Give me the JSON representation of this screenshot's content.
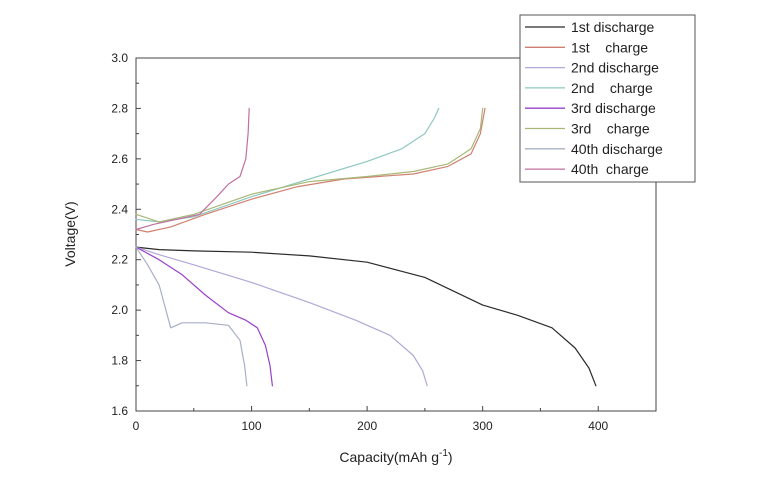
{
  "chart_data": {
    "type": "line",
    "xlabel": "Capacity(mAh g",
    "xlabel_sup": "-1",
    "xlabel_close": ")",
    "ylabel": "Voltage(V)",
    "xlim": [
      0,
      450
    ],
    "ylim": [
      1.6,
      3.0
    ],
    "x_ticks": [
      0,
      100,
      200,
      300,
      400
    ],
    "y_ticks": [
      1.6,
      1.8,
      2.0,
      2.2,
      2.4,
      2.6,
      2.8,
      3.0
    ],
    "x_tick_labels": [
      "0",
      "100",
      "200",
      "300",
      "400"
    ],
    "y_tick_labels": [
      "1.6",
      "1.8",
      "2.0",
      "2.2",
      "2.4",
      "2.6",
      "2.8",
      "3.0"
    ],
    "grid": false,
    "legend": {
      "placement": "top-right",
      "entries": [
        {
          "label": "1st discharge",
          "color": "#2b2b2b"
        },
        {
          "label": "1st    charge",
          "color": "#d08070"
        },
        {
          "label": "2nd discharge",
          "color": "#b0a8d8"
        },
        {
          "label": "2nd    charge",
          "color": "#8fc8c0"
        },
        {
          "label": "3rd discharge",
          "color": "#9a40c8"
        },
        {
          "label": "3rd    charge",
          "color": "#a8b878"
        },
        {
          "label": "40th discharge",
          "color": "#a8b0c8"
        },
        {
          "label": "40th  charge",
          "color": "#c070a0"
        }
      ]
    },
    "series": [
      {
        "name": "1st discharge",
        "color": "#2b2b2b",
        "points": [
          [
            0,
            2.25
          ],
          [
            20,
            2.24
          ],
          [
            50,
            2.235
          ],
          [
            100,
            2.23
          ],
          [
            150,
            2.215
          ],
          [
            200,
            2.19
          ],
          [
            250,
            2.13
          ],
          [
            300,
            2.02
          ],
          [
            330,
            1.98
          ],
          [
            360,
            1.93
          ],
          [
            380,
            1.85
          ],
          [
            392,
            1.77
          ],
          [
            398,
            1.7
          ]
        ]
      },
      {
        "name": "1st    charge",
        "color": "#d08070",
        "points": [
          [
            0,
            2.32
          ],
          [
            10,
            2.31
          ],
          [
            30,
            2.33
          ],
          [
            60,
            2.38
          ],
          [
            100,
            2.44
          ],
          [
            140,
            2.49
          ],
          [
            180,
            2.52
          ],
          [
            210,
            2.53
          ],
          [
            240,
            2.54
          ],
          [
            270,
            2.57
          ],
          [
            290,
            2.62
          ],
          [
            298,
            2.7
          ],
          [
            302,
            2.8
          ]
        ]
      },
      {
        "name": "2nd discharge",
        "color": "#b0a8d8",
        "points": [
          [
            0,
            2.25
          ],
          [
            20,
            2.22
          ],
          [
            50,
            2.18
          ],
          [
            100,
            2.11
          ],
          [
            150,
            2.03
          ],
          [
            190,
            1.96
          ],
          [
            220,
            1.9
          ],
          [
            240,
            1.82
          ],
          [
            248,
            1.76
          ],
          [
            252,
            1.7
          ]
        ]
      },
      {
        "name": "2nd    charge",
        "color": "#8fc8c0",
        "points": [
          [
            0,
            2.36
          ],
          [
            20,
            2.35
          ],
          [
            50,
            2.37
          ],
          [
            100,
            2.45
          ],
          [
            150,
            2.52
          ],
          [
            200,
            2.59
          ],
          [
            230,
            2.64
          ],
          [
            250,
            2.7
          ],
          [
            258,
            2.76
          ],
          [
            262,
            2.8
          ]
        ]
      },
      {
        "name": "3rd discharge",
        "color": "#9a40c8",
        "points": [
          [
            0,
            2.25
          ],
          [
            20,
            2.2
          ],
          [
            40,
            2.14
          ],
          [
            60,
            2.06
          ],
          [
            80,
            1.99
          ],
          [
            95,
            1.96
          ],
          [
            105,
            1.93
          ],
          [
            112,
            1.86
          ],
          [
            116,
            1.78
          ],
          [
            118,
            1.7
          ]
        ]
      },
      {
        "name": "3rd    charge",
        "color": "#a8b878",
        "points": [
          [
            0,
            2.38
          ],
          [
            20,
            2.35
          ],
          [
            50,
            2.38
          ],
          [
            100,
            2.46
          ],
          [
            150,
            2.51
          ],
          [
            200,
            2.53
          ],
          [
            240,
            2.55
          ],
          [
            270,
            2.58
          ],
          [
            290,
            2.64
          ],
          [
            298,
            2.72
          ],
          [
            300,
            2.8
          ]
        ]
      },
      {
        "name": "40th discharge",
        "color": "#a8b0c8",
        "points": [
          [
            0,
            2.25
          ],
          [
            10,
            2.18
          ],
          [
            20,
            2.1
          ],
          [
            30,
            1.93
          ],
          [
            40,
            1.95
          ],
          [
            60,
            1.95
          ],
          [
            80,
            1.94
          ],
          [
            90,
            1.88
          ],
          [
            94,
            1.78
          ],
          [
            96,
            1.7
          ]
        ]
      },
      {
        "name": "40th  charge",
        "color": "#c070a0",
        "points": [
          [
            0,
            2.32
          ],
          [
            15,
            2.34
          ],
          [
            35,
            2.36
          ],
          [
            55,
            2.38
          ],
          [
            70,
            2.45
          ],
          [
            80,
            2.5
          ],
          [
            90,
            2.53
          ],
          [
            95,
            2.6
          ],
          [
            97,
            2.7
          ],
          [
            98,
            2.8
          ]
        ]
      }
    ]
  }
}
